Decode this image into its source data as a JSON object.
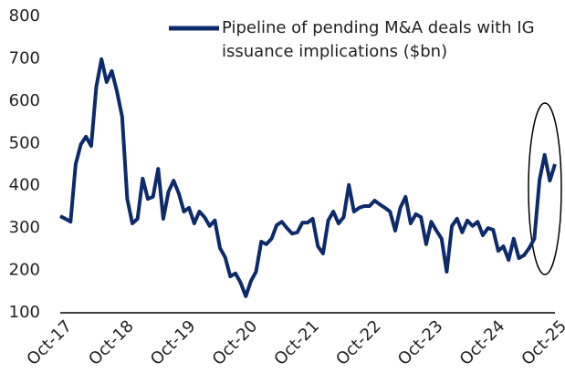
{
  "chart_data": {
    "type": "line",
    "legend": "Pipeline of pending M&A deals with IG issuance implications ($bn)",
    "categories": [
      "Oct-17",
      null,
      null,
      null,
      null,
      null,
      null,
      null,
      null,
      null,
      null,
      null,
      "Oct-18",
      null,
      null,
      null,
      null,
      null,
      null,
      null,
      null,
      null,
      null,
      null,
      "Oct-19",
      null,
      null,
      null,
      null,
      null,
      null,
      null,
      null,
      null,
      null,
      null,
      "Oct-20",
      null,
      null,
      null,
      null,
      null,
      null,
      null,
      null,
      null,
      null,
      null,
      "Oct-21",
      null,
      null,
      null,
      null,
      null,
      null,
      null,
      null,
      null,
      null,
      null,
      "Oct-22",
      null,
      null,
      null,
      null,
      null,
      null,
      null,
      null,
      null,
      null,
      null,
      "Oct-23",
      null,
      null,
      null,
      null,
      null,
      null,
      null,
      null,
      null,
      null,
      null,
      "Oct-24",
      null,
      null,
      null,
      null,
      null,
      null,
      null,
      null,
      null,
      null,
      null,
      "Oct-25"
    ],
    "series": [
      {
        "name": "Pipeline of pending M&A deals with IG issuance implications ($bn)",
        "color": "#0d2a6b",
        "values": [
          328,
          322,
          315,
          451,
          498,
          516,
          494,
          634,
          699,
          645,
          671,
          623,
          563,
          369,
          311,
          322,
          417,
          369,
          374,
          440,
          322,
          386,
          412,
          382,
          339,
          348,
          311,
          339,
          326,
          305,
          318,
          253,
          231,
          186,
          193,
          171,
          139,
          175,
          197,
          268,
          262,
          275,
          307,
          315,
          300,
          287,
          290,
          313,
          313,
          322,
          257,
          240,
          318,
          339,
          311,
          326,
          402,
          339,
          348,
          352,
          352,
          365,
          356,
          348,
          339,
          294,
          348,
          374,
          311,
          333,
          326,
          262,
          315,
          294,
          275,
          197,
          305,
          322,
          290,
          318,
          305,
          315,
          283,
          300,
          296,
          246,
          257,
          225,
          275,
          229,
          236,
          253,
          275,
          414,
          473,
          412,
          451
        ]
      }
    ],
    "ylim": [
      100,
      800
    ],
    "yticks": [
      100,
      200,
      300,
      400,
      500,
      600,
      700,
      800
    ],
    "grid": false
  }
}
